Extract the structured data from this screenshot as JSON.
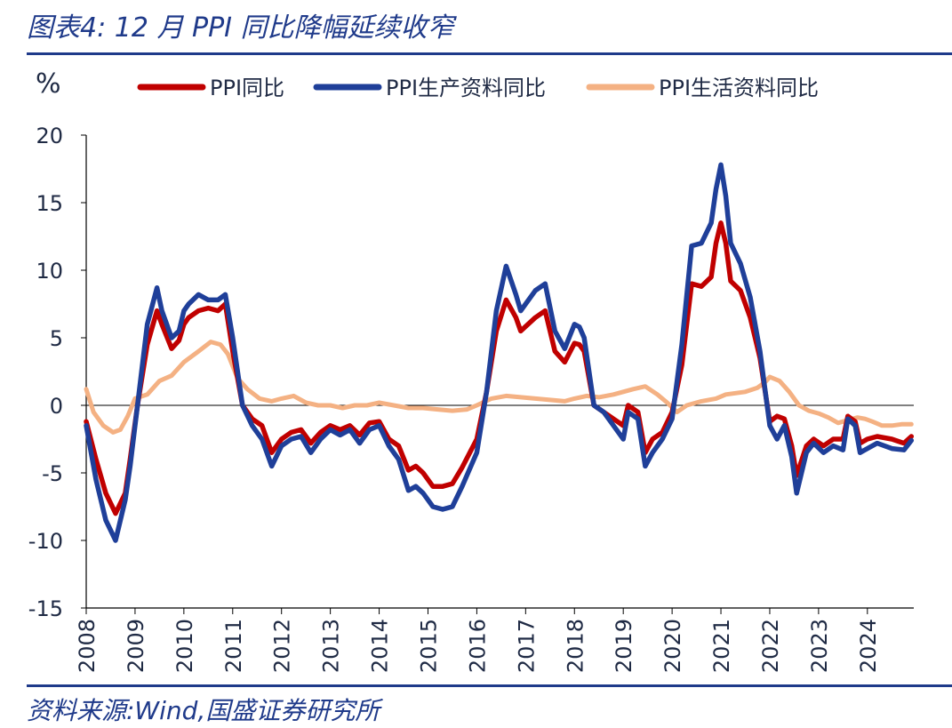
{
  "header": {
    "title": "图表4:  12 月 PPI 同比降幅延续收窄"
  },
  "footer": {
    "source": "资料来源:Wind,国盛证券研究所"
  },
  "chart_data": {
    "type": "line",
    "ylabel": "%",
    "ylim": [
      -15,
      20
    ],
    "yticks": [
      20,
      15,
      10,
      5,
      0,
      -5,
      -10,
      -15
    ],
    "xlim": [
      2008,
      2024.95
    ],
    "xticks": [
      "2008",
      "2009",
      "2010",
      "2011",
      "2012",
      "2013",
      "2014",
      "2015",
      "2016",
      "2017",
      "2018",
      "2019",
      "2020",
      "2021",
      "2022",
      "2023",
      "2024"
    ],
    "legend_position": "top",
    "series": [
      {
        "name": "PPI同比",
        "color": "#c00000",
        "x": [
          2008.0,
          2008.2,
          2008.4,
          2008.6,
          2008.8,
          2008.9,
          2009.05,
          2009.25,
          2009.45,
          2009.55,
          2009.75,
          2009.9,
          2010.0,
          2010.1,
          2010.3,
          2010.5,
          2010.7,
          2010.85,
          2011.0,
          2011.2,
          2011.4,
          2011.6,
          2011.8,
          2012.0,
          2012.2,
          2012.4,
          2012.6,
          2012.8,
          2013.0,
          2013.2,
          2013.4,
          2013.6,
          2013.8,
          2014.0,
          2014.2,
          2014.4,
          2014.6,
          2014.75,
          2014.9,
          2015.1,
          2015.3,
          2015.5,
          2015.7,
          2016.0,
          2016.2,
          2016.4,
          2016.6,
          2016.8,
          2016.9,
          2017.2,
          2017.4,
          2017.6,
          2017.8,
          2018.0,
          2018.1,
          2018.2,
          2018.4,
          2018.6,
          2018.8,
          2019.0,
          2019.1,
          2019.3,
          2019.45,
          2019.6,
          2019.8,
          2020.0,
          2020.2,
          2020.4,
          2020.6,
          2020.8,
          2020.9,
          2021.0,
          2021.1,
          2021.2,
          2021.4,
          2021.6,
          2021.8,
          2022.0,
          2022.15,
          2022.3,
          2022.45,
          2022.55,
          2022.75,
          2022.9,
          2023.1,
          2023.3,
          2023.5,
          2023.6,
          2023.75,
          2023.85,
          2024.0,
          2024.2,
          2024.5,
          2024.75,
          2024.9
        ],
        "y": [
          -1.2,
          -4.0,
          -6.5,
          -8.0,
          -6.5,
          -4.0,
          0.0,
          4.5,
          7.0,
          6.0,
          4.2,
          4.8,
          6.0,
          6.5,
          7.0,
          7.2,
          7.0,
          7.5,
          4.0,
          0.0,
          -1.0,
          -1.5,
          -3.5,
          -2.5,
          -2.0,
          -1.8,
          -2.8,
          -2.0,
          -1.5,
          -1.8,
          -1.5,
          -2.2,
          -1.3,
          -1.2,
          -2.5,
          -3.0,
          -4.8,
          -4.5,
          -5.0,
          -6.0,
          -6.0,
          -5.8,
          -4.6,
          -2.5,
          1.0,
          5.5,
          7.8,
          6.5,
          5.5,
          6.5,
          7.0,
          4.0,
          3.2,
          4.6,
          4.5,
          4.0,
          0.0,
          -0.5,
          -1.0,
          -1.5,
          0.0,
          -0.5,
          -3.5,
          -2.5,
          -2.0,
          -0.5,
          3.0,
          9.0,
          8.8,
          9.5,
          12.0,
          13.5,
          12.0,
          9.2,
          8.5,
          6.5,
          3.5,
          -1.2,
          -0.8,
          -1.0,
          -3.0,
          -5.2,
          -3.0,
          -2.5,
          -3.0,
          -2.5,
          -2.5,
          -0.8,
          -1.2,
          -2.8,
          -2.5,
          -2.3,
          -2.5,
          -2.8,
          -2.3
        ]
      },
      {
        "name": "PPI生产资料同比",
        "color": "#1f3f99",
        "x": [
          2008.0,
          2008.2,
          2008.4,
          2008.6,
          2008.8,
          2008.9,
          2009.05,
          2009.25,
          2009.45,
          2009.55,
          2009.75,
          2009.9,
          2010.0,
          2010.1,
          2010.3,
          2010.5,
          2010.7,
          2010.85,
          2011.0,
          2011.2,
          2011.4,
          2011.6,
          2011.8,
          2012.0,
          2012.2,
          2012.4,
          2012.6,
          2012.8,
          2013.0,
          2013.2,
          2013.4,
          2013.6,
          2013.8,
          2014.0,
          2014.2,
          2014.4,
          2014.6,
          2014.75,
          2014.9,
          2015.1,
          2015.3,
          2015.5,
          2015.7,
          2016.0,
          2016.2,
          2016.4,
          2016.6,
          2016.8,
          2016.9,
          2017.2,
          2017.4,
          2017.6,
          2017.8,
          2018.0,
          2018.1,
          2018.2,
          2018.4,
          2018.6,
          2018.8,
          2019.0,
          2019.1,
          2019.3,
          2019.45,
          2019.6,
          2019.8,
          2020.0,
          2020.2,
          2020.4,
          2020.6,
          2020.8,
          2020.9,
          2021.0,
          2021.1,
          2021.2,
          2021.4,
          2021.6,
          2021.8,
          2022.0,
          2022.15,
          2022.3,
          2022.45,
          2022.55,
          2022.75,
          2022.9,
          2023.1,
          2023.3,
          2023.5,
          2023.6,
          2023.75,
          2023.85,
          2024.0,
          2024.2,
          2024.5,
          2024.75,
          2024.9
        ],
        "y": [
          -1.5,
          -5.5,
          -8.5,
          -10.0,
          -7.0,
          -4.5,
          0.0,
          6.0,
          8.7,
          7.0,
          5.0,
          5.5,
          7.0,
          7.5,
          8.2,
          7.8,
          7.8,
          8.2,
          5.0,
          0.0,
          -1.5,
          -2.5,
          -4.5,
          -3.0,
          -2.5,
          -2.3,
          -3.5,
          -2.5,
          -1.8,
          -2.2,
          -1.8,
          -2.8,
          -1.8,
          -1.5,
          -3.0,
          -4.0,
          -6.3,
          -6.0,
          -6.5,
          -7.5,
          -7.7,
          -7.5,
          -6.0,
          -3.5,
          1.0,
          7.0,
          10.3,
          8.2,
          7.0,
          8.5,
          9.0,
          5.5,
          4.2,
          6.0,
          5.8,
          5.0,
          0.0,
          -0.5,
          -1.5,
          -2.5,
          -0.5,
          -1.0,
          -4.5,
          -3.5,
          -2.5,
          -1.0,
          4.5,
          11.8,
          12.0,
          13.5,
          16.0,
          17.8,
          15.5,
          12.0,
          10.5,
          8.0,
          4.0,
          -1.5,
          -2.5,
          -1.5,
          -3.8,
          -6.5,
          -3.5,
          -2.8,
          -3.5,
          -3.0,
          -3.3,
          -1.0,
          -1.5,
          -3.5,
          -3.2,
          -2.8,
          -3.2,
          -3.3,
          -2.6
        ]
      },
      {
        "name": "PPI生活资料同比",
        "color": "#f4b183",
        "x": [
          2008.0,
          2008.15,
          2008.35,
          2008.55,
          2008.7,
          2008.85,
          2009.0,
          2009.25,
          2009.5,
          2009.75,
          2010.0,
          2010.3,
          2010.55,
          2010.75,
          2010.9,
          2011.1,
          2011.3,
          2011.55,
          2011.8,
          2012.0,
          2012.25,
          2012.5,
          2012.75,
          2013.0,
          2013.25,
          2013.5,
          2013.75,
          2014.0,
          2014.3,
          2014.6,
          2014.9,
          2015.2,
          2015.5,
          2015.8,
          2016.0,
          2016.3,
          2016.6,
          2016.9,
          2017.2,
          2017.5,
          2017.8,
          2018.0,
          2018.25,
          2018.5,
          2018.8,
          2019.0,
          2019.2,
          2019.45,
          2019.7,
          2019.9,
          2020.1,
          2020.3,
          2020.6,
          2020.9,
          2021.1,
          2021.3,
          2021.5,
          2021.75,
          2021.9,
          2022.0,
          2022.2,
          2022.4,
          2022.6,
          2022.8,
          2023.0,
          2023.2,
          2023.4,
          2023.6,
          2023.8,
          2023.95,
          2024.1,
          2024.3,
          2024.5,
          2024.7,
          2024.9
        ],
        "y": [
          1.2,
          -0.5,
          -1.5,
          -2.0,
          -1.8,
          -0.8,
          0.5,
          0.8,
          1.8,
          2.2,
          3.2,
          4.0,
          4.7,
          4.5,
          3.8,
          2.0,
          1.2,
          0.5,
          0.3,
          0.5,
          0.7,
          0.2,
          0.0,
          0.0,
          -0.2,
          0.0,
          0.0,
          0.2,
          0.0,
          -0.2,
          -0.2,
          -0.3,
          -0.4,
          -0.3,
          0.0,
          0.5,
          0.7,
          0.6,
          0.5,
          0.4,
          0.3,
          0.5,
          0.7,
          0.6,
          0.8,
          1.0,
          1.2,
          1.4,
          0.8,
          0.2,
          -0.5,
          0.0,
          0.3,
          0.5,
          0.8,
          0.9,
          1.0,
          1.3,
          1.7,
          2.1,
          1.8,
          1.0,
          0.0,
          -0.4,
          -0.6,
          -0.9,
          -1.3,
          -1.1,
          -0.9,
          -1.0,
          -1.2,
          -1.5,
          -1.5,
          -1.4,
          -1.4
        ]
      }
    ]
  }
}
